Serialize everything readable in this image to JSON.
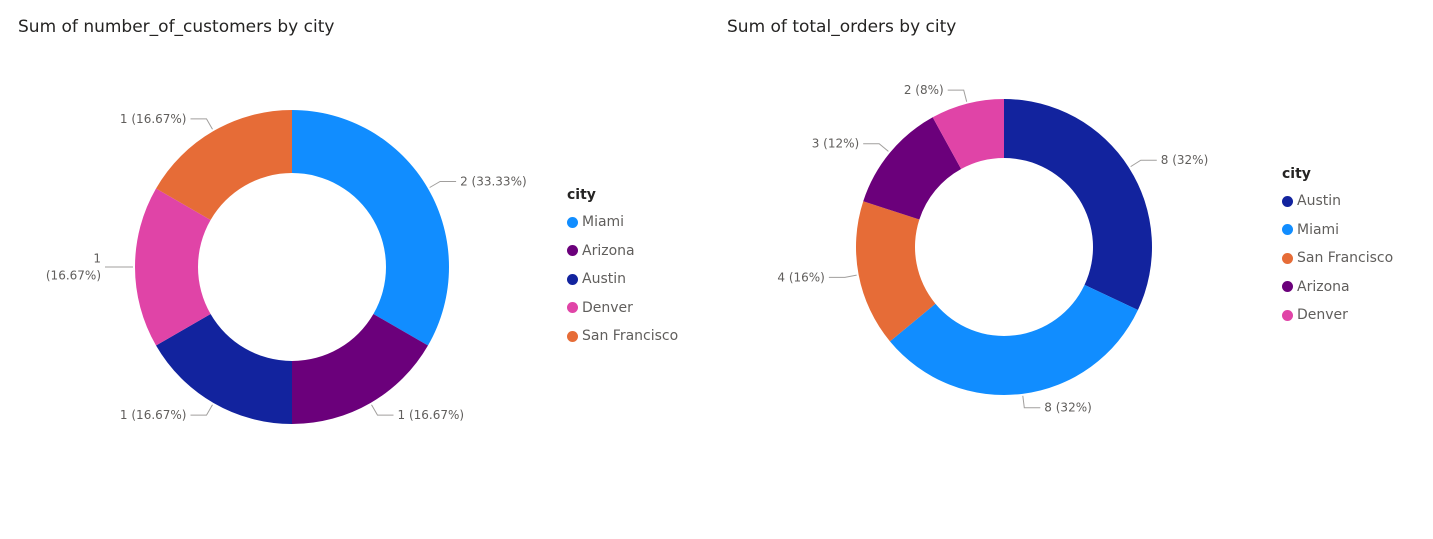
{
  "chart_data": [
    {
      "type": "donut",
      "title": "Sum of number_of_customers by city",
      "legend_title": "city",
      "legend_placement": "right",
      "slices": [
        {
          "category": "Miami",
          "value": 2,
          "label": "2 (33.33%)",
          "color": "#118DFF"
        },
        {
          "category": "Arizona",
          "value": 1,
          "label": "1 (16.67%)",
          "color": "#6B007B"
        },
        {
          "category": "Austin",
          "value": 1,
          "label": "1 (16.67%)",
          "color": "#12239E"
        },
        {
          "category": "Denver",
          "value": 1,
          "label": "1 (16.67%)",
          "label_lines": [
            "1",
            "(16.67%)"
          ],
          "color": "#E044A7"
        },
        {
          "category": "San Francisco",
          "value": 1,
          "label": "1 (16.67%)",
          "color": "#E66C37"
        }
      ]
    },
    {
      "type": "donut",
      "title": "Sum of total_orders by city",
      "legend_title": "city",
      "legend_placement": "right",
      "slices": [
        {
          "category": "Austin",
          "value": 8,
          "label": "8 (32%)",
          "color": "#12239E"
        },
        {
          "category": "Miami",
          "value": 8,
          "label": "8 (32%)",
          "color": "#118DFF"
        },
        {
          "category": "San Francisco",
          "value": 4,
          "label": "4 (16%)",
          "color": "#E66C37"
        },
        {
          "category": "Arizona",
          "value": 3,
          "label": "3 (12%)",
          "color": "#6B007B"
        },
        {
          "category": "Denver",
          "value": 2,
          "label": "2 (8%)",
          "color": "#E044A7"
        }
      ]
    }
  ]
}
